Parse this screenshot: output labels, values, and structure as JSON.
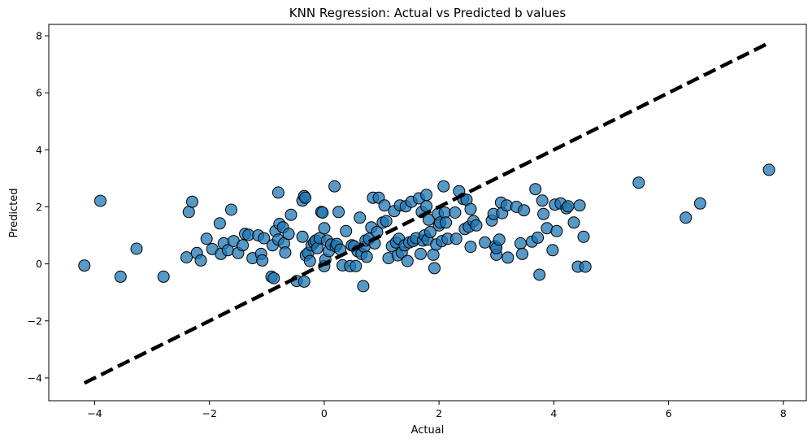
{
  "chart_data": {
    "type": "scatter",
    "title": "KNN Regression: Actual vs Predicted b values",
    "xlabel": "Actual",
    "ylabel": "Predicted",
    "xlim": [
      -4.8,
      8.4
    ],
    "ylim": [
      -4.8,
      8.4
    ],
    "xticks": [
      -4,
      -2,
      0,
      2,
      4,
      6,
      8
    ],
    "yticks": [
      -4,
      -2,
      0,
      2,
      4,
      6,
      8
    ],
    "xtick_labels": [
      "−4",
      "−2",
      "0",
      "2",
      "4",
      "6",
      "8"
    ],
    "ytick_labels": [
      "−4",
      "−2",
      "0",
      "2",
      "4",
      "6",
      "8"
    ],
    "grid": false,
    "legend": false,
    "marker_color": "#1f77b4",
    "marker_edge_color": "#000000",
    "reference_line": {
      "style": "dashed",
      "color": "#000000",
      "from": [
        -4.18,
        -4.18
      ],
      "to": [
        7.75,
        7.75
      ]
    },
    "points": [
      {
        "x": -4.18,
        "y": -0.06
      },
      {
        "x": -3.9,
        "y": 2.21
      },
      {
        "x": -3.55,
        "y": -0.45
      },
      {
        "x": -3.27,
        "y": 0.53
      },
      {
        "x": -2.8,
        "y": -0.45
      },
      {
        "x": -2.4,
        "y": 0.23
      },
      {
        "x": -2.36,
        "y": 1.82
      },
      {
        "x": -2.3,
        "y": 2.18
      },
      {
        "x": -2.22,
        "y": 0.38
      },
      {
        "x": -2.15,
        "y": 0.12
      },
      {
        "x": -2.05,
        "y": 0.88
      },
      {
        "x": -1.95,
        "y": 0.52
      },
      {
        "x": -1.82,
        "y": 1.42
      },
      {
        "x": -1.8,
        "y": 0.35
      },
      {
        "x": -1.75,
        "y": 0.72
      },
      {
        "x": -1.68,
        "y": 0.48
      },
      {
        "x": -1.62,
        "y": 1.9
      },
      {
        "x": -1.58,
        "y": 0.8
      },
      {
        "x": -1.5,
        "y": 0.38
      },
      {
        "x": -1.42,
        "y": 0.65
      },
      {
        "x": -1.38,
        "y": 1.05
      },
      {
        "x": -1.32,
        "y": 1.02
      },
      {
        "x": -1.25,
        "y": 0.2
      },
      {
        "x": -1.15,
        "y": 1.0
      },
      {
        "x": -1.1,
        "y": 0.35
      },
      {
        "x": -1.08,
        "y": 0.12
      },
      {
        "x": -1.05,
        "y": 0.9
      },
      {
        "x": -0.92,
        "y": -0.45
      },
      {
        "x": -0.88,
        "y": -0.5
      },
      {
        "x": -0.9,
        "y": 0.65
      },
      {
        "x": -0.85,
        "y": 1.15
      },
      {
        "x": -0.8,
        "y": 2.5
      },
      {
        "x": -0.8,
        "y": 0.85
      },
      {
        "x": -0.78,
        "y": 1.4
      },
      {
        "x": -0.72,
        "y": 1.28
      },
      {
        "x": -0.7,
        "y": 0.72
      },
      {
        "x": -0.68,
        "y": 0.4
      },
      {
        "x": -0.62,
        "y": 1.05
      },
      {
        "x": -0.58,
        "y": 1.72
      },
      {
        "x": -0.48,
        "y": -0.6
      },
      {
        "x": -0.38,
        "y": 0.95
      },
      {
        "x": -0.38,
        "y": 2.22
      },
      {
        "x": -0.35,
        "y": 2.38
      },
      {
        "x": -0.33,
        "y": 2.32
      },
      {
        "x": -0.35,
        "y": -0.62
      },
      {
        "x": -0.32,
        "y": 0.3
      },
      {
        "x": -0.28,
        "y": 0.38
      },
      {
        "x": -0.25,
        "y": 0.1
      },
      {
        "x": -0.22,
        "y": 0.65
      },
      {
        "x": -0.18,
        "y": 0.75
      },
      {
        "x": -0.15,
        "y": 0.82
      },
      {
        "x": -0.12,
        "y": 0.55
      },
      {
        "x": -0.08,
        "y": 0.9
      },
      {
        "x": -0.05,
        "y": 1.82
      },
      {
        "x": -0.03,
        "y": 1.8
      },
      {
        "x": 0.0,
        "y": 1.25
      },
      {
        "x": 0.0,
        "y": -0.08
      },
      {
        "x": 0.02,
        "y": 0.15
      },
      {
        "x": 0.05,
        "y": 0.82
      },
      {
        "x": 0.08,
        "y": 0.45
      },
      {
        "x": 0.12,
        "y": 0.68
      },
      {
        "x": 0.18,
        "y": 2.72
      },
      {
        "x": 0.2,
        "y": 0.62
      },
      {
        "x": 0.22,
        "y": 0.7
      },
      {
        "x": 0.25,
        "y": 1.82
      },
      {
        "x": 0.28,
        "y": 0.5
      },
      {
        "x": 0.32,
        "y": -0.05
      },
      {
        "x": 0.38,
        "y": 1.15
      },
      {
        "x": 0.45,
        "y": -0.08
      },
      {
        "x": 0.48,
        "y": 0.65
      },
      {
        "x": 0.52,
        "y": 0.62
      },
      {
        "x": 0.55,
        "y": -0.08
      },
      {
        "x": 0.58,
        "y": 0.45
      },
      {
        "x": 0.62,
        "y": 1.62
      },
      {
        "x": 0.65,
        "y": 0.35
      },
      {
        "x": 0.68,
        "y": -0.78
      },
      {
        "x": 0.7,
        "y": 0.6
      },
      {
        "x": 0.72,
        "y": 0.82
      },
      {
        "x": 0.74,
        "y": 0.25
      },
      {
        "x": 0.78,
        "y": 0.88
      },
      {
        "x": 0.82,
        "y": 1.28
      },
      {
        "x": 0.85,
        "y": 2.32
      },
      {
        "x": 0.88,
        "y": 0.72
      },
      {
        "x": 0.92,
        "y": 1.12
      },
      {
        "x": 0.95,
        "y": 2.32
      },
      {
        "x": 1.02,
        "y": 1.45
      },
      {
        "x": 1.05,
        "y": 2.05
      },
      {
        "x": 1.08,
        "y": 1.5
      },
      {
        "x": 1.12,
        "y": 0.2
      },
      {
        "x": 1.18,
        "y": 0.62
      },
      {
        "x": 1.22,
        "y": 1.85
      },
      {
        "x": 1.25,
        "y": 0.75
      },
      {
        "x": 1.28,
        "y": 0.3
      },
      {
        "x": 1.3,
        "y": 0.88
      },
      {
        "x": 1.32,
        "y": 2.05
      },
      {
        "x": 1.35,
        "y": 0.4
      },
      {
        "x": 1.4,
        "y": 0.65
      },
      {
        "x": 1.42,
        "y": 2.02
      },
      {
        "x": 1.45,
        "y": 0.1
      },
      {
        "x": 1.48,
        "y": 0.75
      },
      {
        "x": 1.52,
        "y": 2.18
      },
      {
        "x": 1.55,
        "y": 0.8
      },
      {
        "x": 1.6,
        "y": 0.9
      },
      {
        "x": 1.65,
        "y": 2.3
      },
      {
        "x": 1.68,
        "y": 0.35
      },
      {
        "x": 1.7,
        "y": 1.82
      },
      {
        "x": 1.72,
        "y": 0.82
      },
      {
        "x": 1.75,
        "y": 1.0
      },
      {
        "x": 1.78,
        "y": 2.42
      },
      {
        "x": 1.78,
        "y": 2.02
      },
      {
        "x": 1.8,
        "y": 0.85
      },
      {
        "x": 1.82,
        "y": 1.55
      },
      {
        "x": 1.85,
        "y": 1.12
      },
      {
        "x": 1.9,
        "y": 0.32
      },
      {
        "x": 1.92,
        "y": -0.15
      },
      {
        "x": 1.95,
        "y": 0.68
      },
      {
        "x": 1.98,
        "y": 1.75
      },
      {
        "x": 2.0,
        "y": 1.35
      },
      {
        "x": 2.02,
        "y": 1.45
      },
      {
        "x": 2.05,
        "y": 0.8
      },
      {
        "x": 2.08,
        "y": 2.72
      },
      {
        "x": 2.1,
        "y": 1.8
      },
      {
        "x": 2.12,
        "y": 1.45
      },
      {
        "x": 2.15,
        "y": 0.88
      },
      {
        "x": 2.28,
        "y": 1.8
      },
      {
        "x": 2.3,
        "y": 0.88
      },
      {
        "x": 2.35,
        "y": 2.55
      },
      {
        "x": 2.42,
        "y": 2.28
      },
      {
        "x": 2.45,
        "y": 1.22
      },
      {
        "x": 2.48,
        "y": 2.25
      },
      {
        "x": 2.52,
        "y": 1.3
      },
      {
        "x": 2.55,
        "y": 0.6
      },
      {
        "x": 2.55,
        "y": 1.92
      },
      {
        "x": 2.6,
        "y": 1.5
      },
      {
        "x": 2.65,
        "y": 1.35
      },
      {
        "x": 2.8,
        "y": 0.75
      },
      {
        "x": 2.92,
        "y": 1.52
      },
      {
        "x": 2.95,
        "y": 1.75
      },
      {
        "x": 2.98,
        "y": 0.62
      },
      {
        "x": 3.0,
        "y": 0.32
      },
      {
        "x": 3.0,
        "y": 0.55
      },
      {
        "x": 3.05,
        "y": 0.85
      },
      {
        "x": 3.08,
        "y": 2.15
      },
      {
        "x": 3.1,
        "y": 1.78
      },
      {
        "x": 3.18,
        "y": 2.05
      },
      {
        "x": 3.2,
        "y": 0.22
      },
      {
        "x": 3.35,
        "y": 2.0
      },
      {
        "x": 3.42,
        "y": 0.72
      },
      {
        "x": 3.45,
        "y": 0.35
      },
      {
        "x": 3.48,
        "y": 1.88
      },
      {
        "x": 3.62,
        "y": 0.78
      },
      {
        "x": 3.68,
        "y": 2.62
      },
      {
        "x": 3.72,
        "y": 0.92
      },
      {
        "x": 3.75,
        "y": -0.38
      },
      {
        "x": 3.8,
        "y": 2.22
      },
      {
        "x": 3.82,
        "y": 1.75
      },
      {
        "x": 3.88,
        "y": 1.25
      },
      {
        "x": 3.98,
        "y": 0.48
      },
      {
        "x": 4.02,
        "y": 2.08
      },
      {
        "x": 4.05,
        "y": 1.15
      },
      {
        "x": 4.12,
        "y": 2.12
      },
      {
        "x": 4.22,
        "y": 1.95
      },
      {
        "x": 4.25,
        "y": 2.02
      },
      {
        "x": 4.35,
        "y": 1.45
      },
      {
        "x": 4.42,
        "y": -0.1
      },
      {
        "x": 4.45,
        "y": 2.05
      },
      {
        "x": 4.52,
        "y": 0.95
      },
      {
        "x": 4.55,
        "y": -0.1
      },
      {
        "x": 5.48,
        "y": 2.85
      },
      {
        "x": 6.3,
        "y": 1.62
      },
      {
        "x": 6.55,
        "y": 2.12
      },
      {
        "x": 7.75,
        "y": 3.3
      }
    ]
  }
}
